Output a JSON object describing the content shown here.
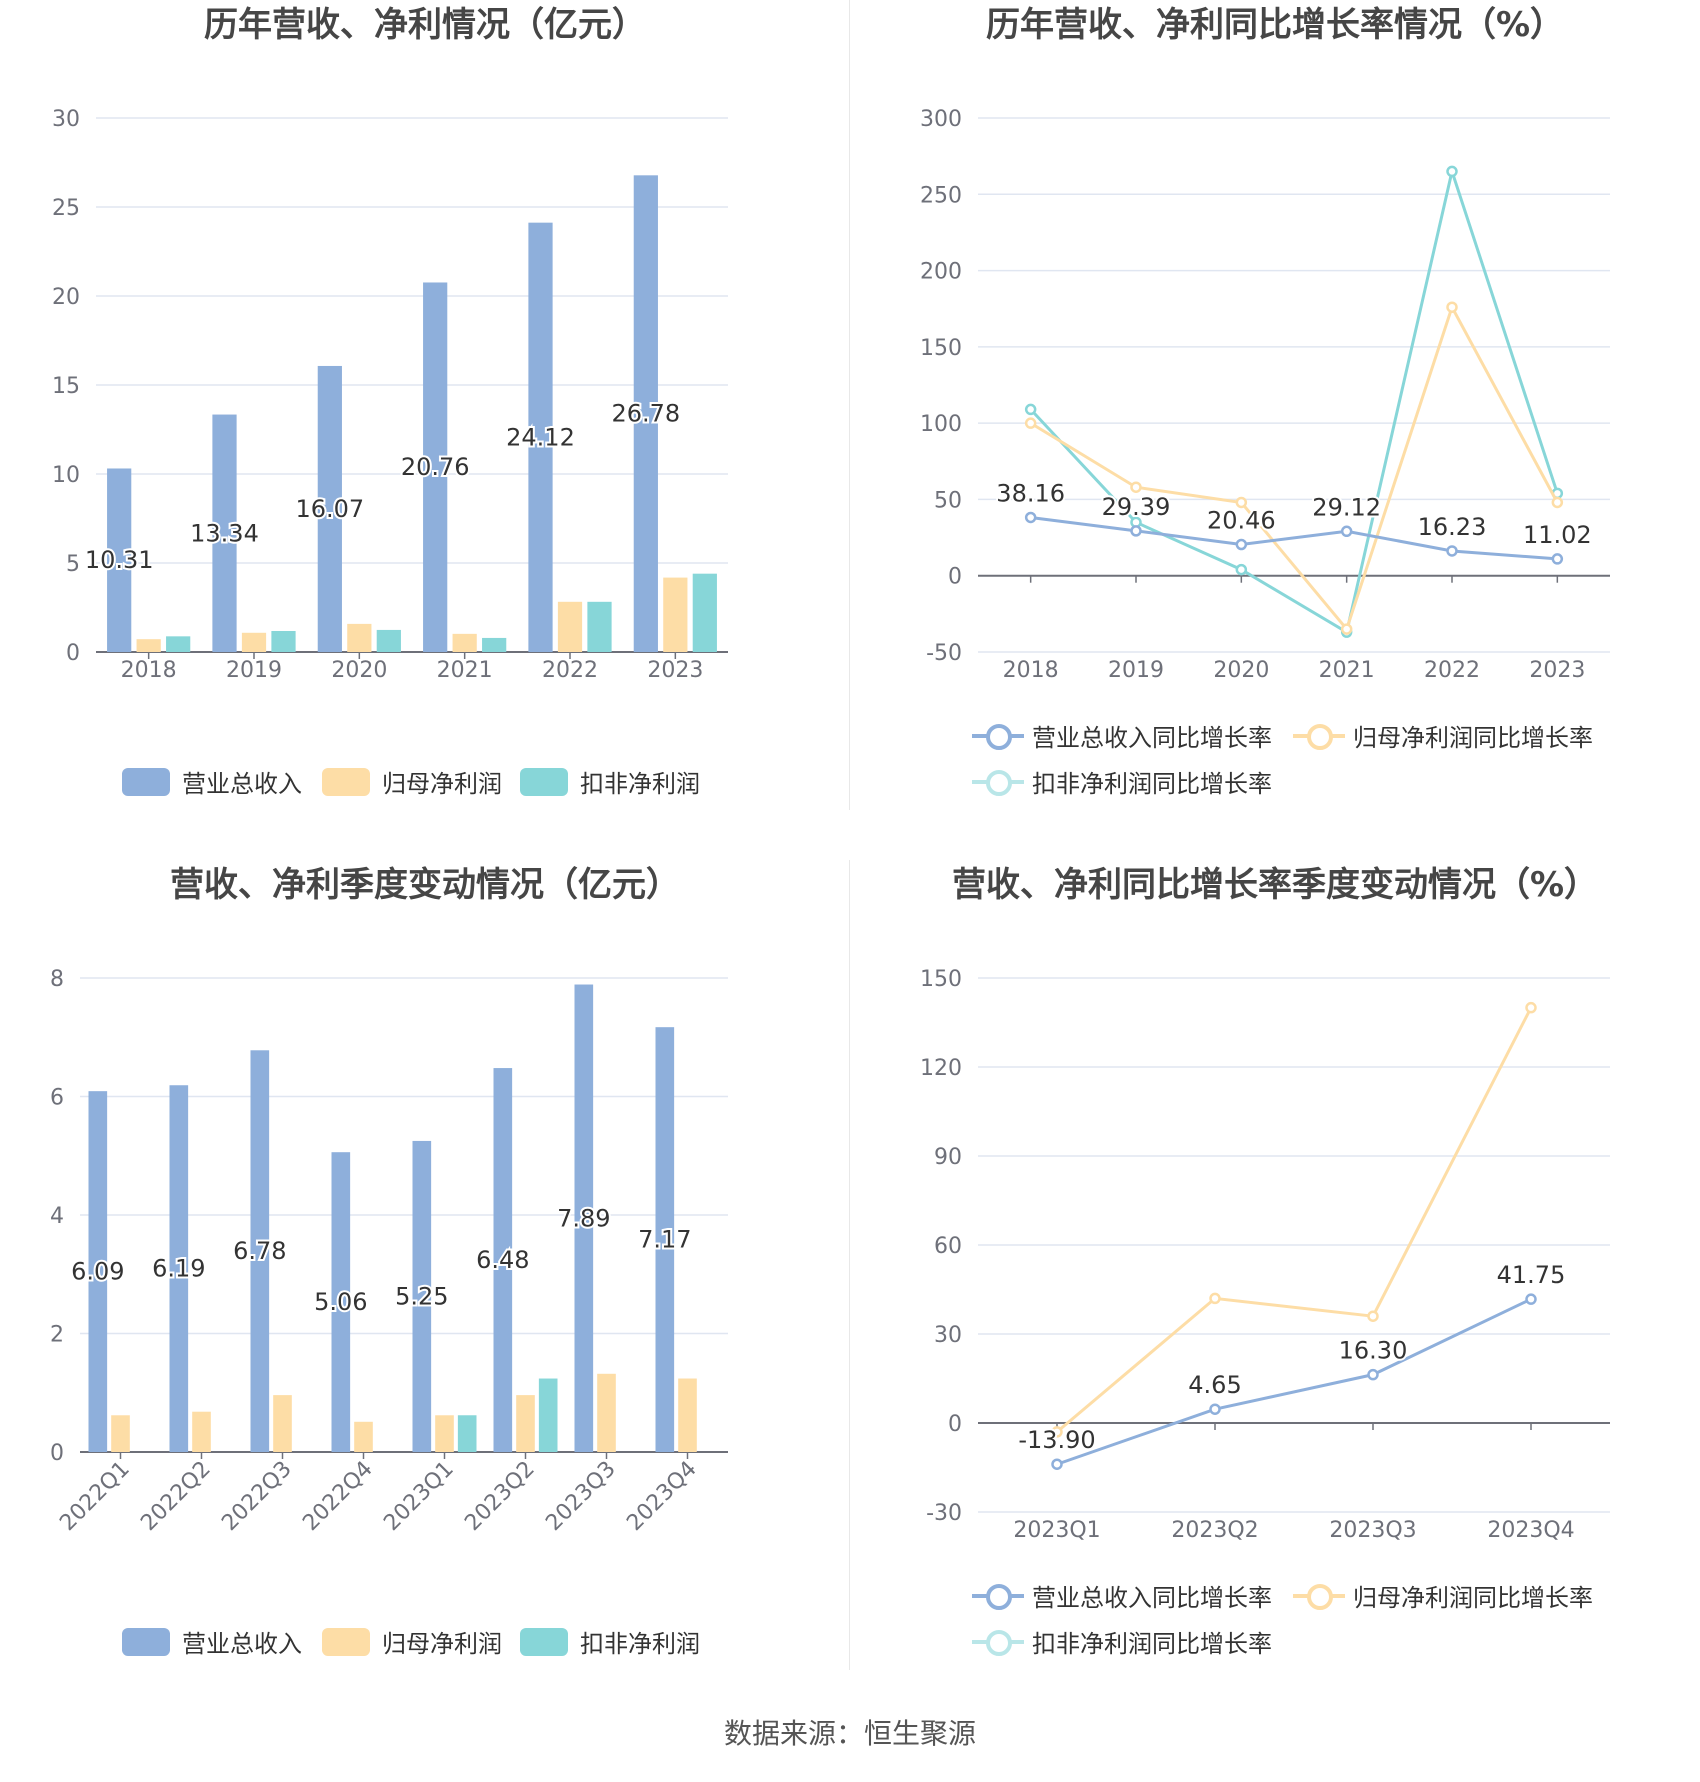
{
  "colors": {
    "revenue": "#8eafdb",
    "net_profit": "#fddda6",
    "deducted_profit": "#87d6d8",
    "grid": "#e0e6f1",
    "axis": "#6e7079"
  },
  "legend": {
    "bars": [
      "营业总收入",
      "归母净利润",
      "扣非净利润"
    ],
    "lines": [
      "营业总收入同比增长率",
      "归母净利润同比增长率",
      "扣非净利润同比增长率"
    ]
  },
  "source": "数据来源：恒生聚源",
  "chart_data": [
    {
      "id": "annual_amount",
      "type": "bar",
      "title": "历年营收、净利情况（亿元）",
      "categories": [
        "2018",
        "2019",
        "2020",
        "2021",
        "2022",
        "2023"
      ],
      "ylim": [
        0,
        30
      ],
      "yticks": [
        0,
        5,
        10,
        15,
        20,
        25,
        30
      ],
      "grid": true,
      "legend_position": "bottom",
      "series": [
        {
          "name": "营业总收入",
          "values": [
            10.31,
            13.34,
            16.07,
            20.76,
            24.12,
            26.78
          ],
          "labels": [
            "10.31",
            "13.34",
            "16.07",
            "20.76",
            "24.12",
            "26.78"
          ]
        },
        {
          "name": "归母净利润",
          "values": [
            0.72,
            1.08,
            1.58,
            1.02,
            2.82,
            4.18
          ]
        },
        {
          "name": "扣非净利润",
          "values": [
            0.88,
            1.18,
            1.24,
            0.79,
            2.82,
            4.4
          ]
        }
      ]
    },
    {
      "id": "annual_growth",
      "type": "line",
      "title": "历年营收、净利同比增长率情况（%）",
      "categories": [
        "2018",
        "2019",
        "2020",
        "2021",
        "2022",
        "2023"
      ],
      "ylim": [
        -50,
        300
      ],
      "yticks": [
        -50,
        0,
        50,
        100,
        150,
        200,
        250,
        300
      ],
      "grid": true,
      "legend_position": "bottom",
      "series": [
        {
          "name": "营业总收入同比增长率",
          "values": [
            38.16,
            29.39,
            20.46,
            29.12,
            16.23,
            11.02
          ],
          "labels": [
            "38.16",
            "29.39",
            "20.46",
            "29.12",
            "16.23",
            "11.02"
          ]
        },
        {
          "name": "归母净利润同比增长率",
          "values": [
            100,
            58,
            48,
            -35,
            176,
            48
          ]
        },
        {
          "name": "扣非净利润同比增长率",
          "values": [
            109,
            35,
            4,
            -37,
            265,
            54
          ]
        }
      ]
    },
    {
      "id": "quarter_amount",
      "type": "bar",
      "title": "营收、净利季度变动情况（亿元）",
      "categories": [
        "2022Q1",
        "2022Q2",
        "2022Q3",
        "2022Q4",
        "2023Q1",
        "2023Q2",
        "2023Q3",
        "2023Q4"
      ],
      "ylim": [
        0,
        8
      ],
      "yticks": [
        0,
        2,
        4,
        6,
        8
      ],
      "grid": true,
      "legend_position": "bottom",
      "series": [
        {
          "name": "营业总收入",
          "values": [
            6.09,
            6.19,
            6.78,
            5.06,
            5.25,
            6.48,
            7.89,
            7.17
          ],
          "labels": [
            "6.09",
            "6.19",
            "6.78",
            "5.06",
            "5.25",
            "6.48",
            "7.89",
            "7.17"
          ]
        },
        {
          "name": "归母净利润",
          "values": [
            0.62,
            0.68,
            0.96,
            0.51,
            0.62,
            0.96,
            1.32,
            1.24
          ]
        },
        {
          "name": "扣非净利润",
          "values": [
            null,
            null,
            null,
            null,
            0.62,
            1.24,
            null,
            null
          ]
        }
      ]
    },
    {
      "id": "quarter_growth",
      "type": "line",
      "title": "营收、净利同比增长率季度变动情况（%）",
      "categories": [
        "2023Q1",
        "2023Q2",
        "2023Q3",
        "2023Q4"
      ],
      "ylim": [
        -30,
        150
      ],
      "yticks": [
        -30,
        0,
        30,
        60,
        90,
        120,
        150
      ],
      "grid": true,
      "legend_position": "bottom",
      "series": [
        {
          "name": "营业总收入同比增长率",
          "values": [
            -13.9,
            4.65,
            16.3,
            41.75
          ],
          "labels": [
            "-13.90",
            "4.65",
            "16.30",
            "41.75"
          ]
        },
        {
          "name": "归母净利润同比增长率",
          "values": [
            -3,
            42,
            36,
            140
          ]
        },
        {
          "name": "扣非净利润同比增长率",
          "values": [
            null,
            null,
            null,
            null
          ]
        }
      ]
    }
  ]
}
